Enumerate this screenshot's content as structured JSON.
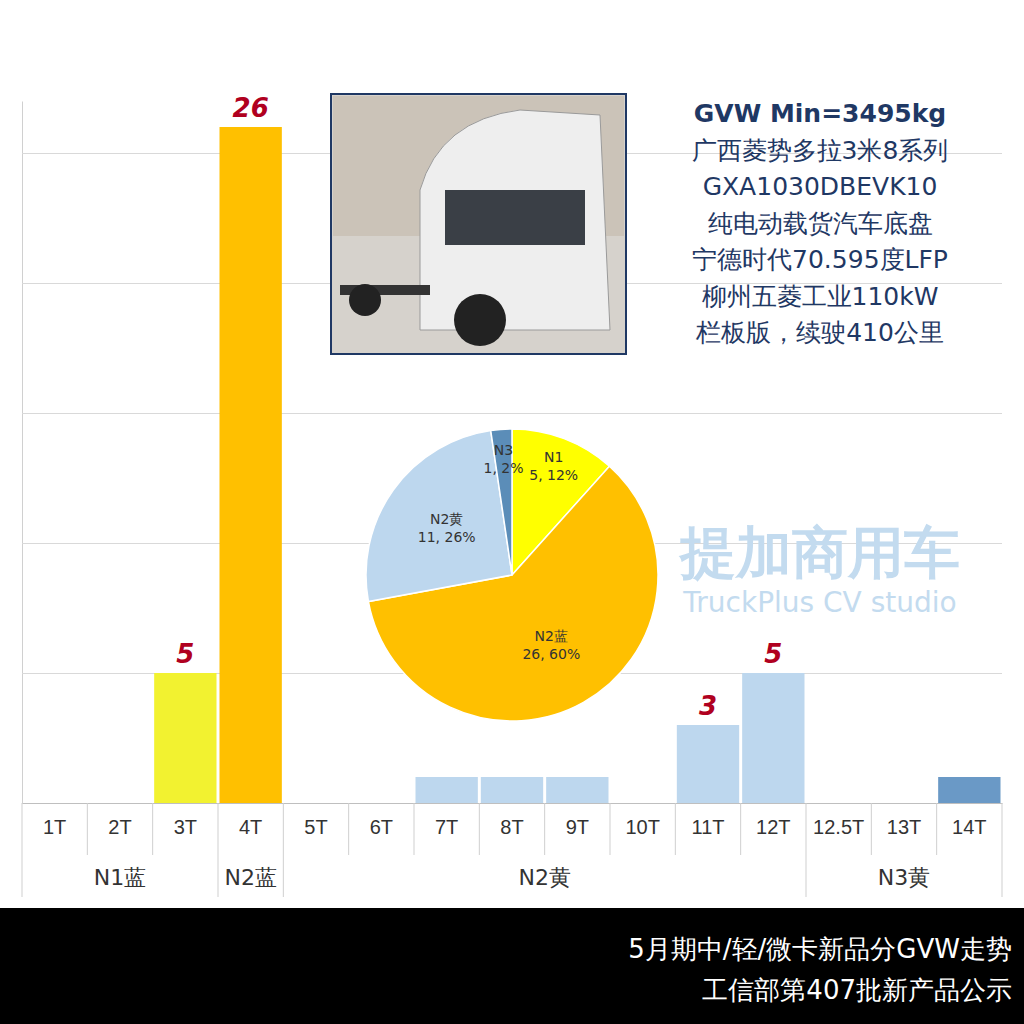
{
  "chart_data": [
    {
      "type": "bar",
      "title": "5月期中/轻/微卡新品分GVW走势",
      "subtitle": "工信部第407批新产品公示",
      "categories": [
        "1T",
        "2T",
        "3T",
        "4T",
        "5T",
        "6T",
        "7T",
        "8T",
        "9T",
        "10T",
        "11T",
        "12T",
        "12.5T",
        "13T",
        "14T"
      ],
      "values": [
        0,
        0,
        5,
        26,
        0,
        0,
        1,
        1,
        1,
        0,
        3,
        5,
        0,
        0,
        1
      ],
      "value_labels": [
        null,
        null,
        "5",
        "26",
        null,
        null,
        null,
        null,
        null,
        null,
        "3",
        "5",
        null,
        null,
        null
      ],
      "colors": [
        "#f2f230",
        "#f2f230",
        "#f2f230",
        "#ffc000",
        "#bdd7ee",
        "#bdd7ee",
        "#bdd7ee",
        "#bdd7ee",
        "#bdd7ee",
        "#bdd7ee",
        "#bdd7ee",
        "#bdd7ee",
        "#6a99c6",
        "#6a99c6",
        "#6a99c6"
      ],
      "groups": [
        {
          "label": "N1蓝",
          "size": 3
        },
        {
          "label": "N2蓝",
          "size": 1
        },
        {
          "label": "N2黄",
          "size": 8
        },
        {
          "label": "N3黄",
          "size": 3
        }
      ],
      "ylim": [
        0,
        27
      ],
      "yticks": [
        0,
        5,
        10,
        15,
        20,
        25
      ],
      "grid": true,
      "data_labels": true,
      "tick_labels": "x",
      "annotations": [
        "GVW Min=3495kg",
        "广西菱势多拉3米8系列",
        "GXA1030DBEVK10",
        "纯电动载货汽车底盘",
        "宁德时代70.595度LFP",
        "柳州五菱工业110kW",
        "栏板版，续驶410公里"
      ],
      "watermark": [
        "提加商用车",
        "TruckPlus CV studio"
      ]
    },
    {
      "type": "pie",
      "categories": [
        "N1",
        "N2蓝",
        "N2黄",
        "N3"
      ],
      "values": [
        5,
        26,
        11,
        1
      ],
      "value_labels": [
        "5, 12%",
        "26, 60%",
        "11, 26%",
        "1, 2%"
      ],
      "colors": [
        "#ffff00",
        "#ffc000",
        "#bdd7ee",
        "#5b8db8"
      ],
      "data_labels": true
    }
  ]
}
